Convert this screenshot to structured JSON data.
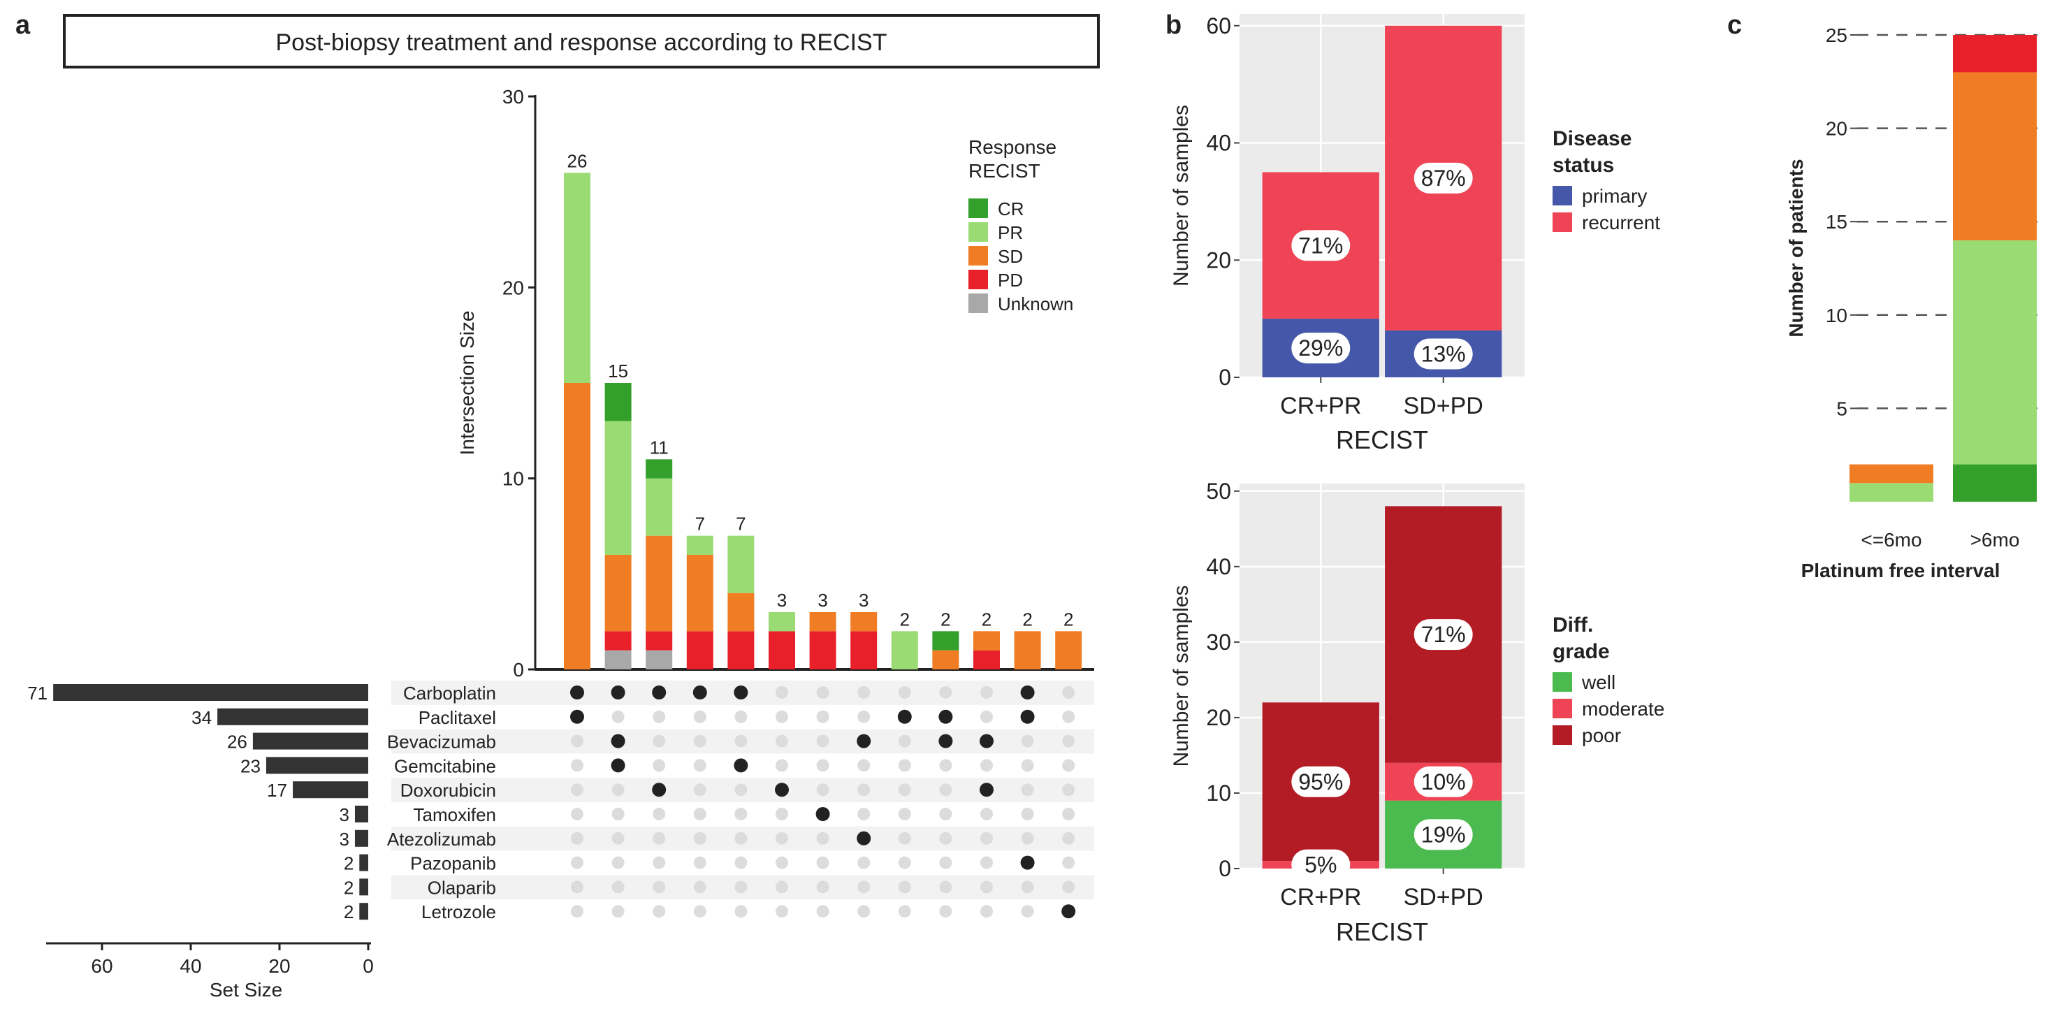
{
  "panel_labels": {
    "a": "a",
    "b": "b",
    "c": "c"
  },
  "colors": {
    "CR": "#33a02c",
    "PR": "#9bdb74",
    "SD": "#f07d23",
    "PD": "#e8202a",
    "Unknown": "#a8a8a8",
    "primary": "#4457a8",
    "recurrent": "#ef4455",
    "well": "#4cbb4f",
    "moderate": "#ef4455",
    "poor": "#b31b25",
    "panel_bg": "#ebebeb",
    "dot_on": "#222222",
    "dot_off": "#dcdcdc",
    "stripe": "#f2f2f2"
  },
  "chart_data": [
    {
      "id": "upset",
      "type": "bar",
      "title": "Post-biopsy treatment and response according to RECIST",
      "ylabel": "Intersection Size",
      "ylim": [
        0,
        30
      ],
      "yticks": [
        0,
        10,
        20,
        30
      ],
      "legend": {
        "title": [
          "Response",
          "RECIST"
        ],
        "position": "top-right",
        "entries": [
          "CR",
          "PR",
          "SD",
          "PD",
          "Unknown"
        ]
      },
      "stack_order": [
        "Unknown",
        "PD",
        "SD",
        "PR",
        "CR"
      ],
      "intersections": [
        {
          "total": 26,
          "label": "26",
          "CR": 0,
          "PR": 11,
          "SD": 15,
          "PD": 0,
          "Unknown": 0,
          "sets": [
            "Carboplatin",
            "Paclitaxel"
          ]
        },
        {
          "total": 15,
          "label": "15",
          "CR": 2,
          "PR": 7,
          "SD": 4,
          "PD": 1,
          "Unknown": 1,
          "sets": [
            "Carboplatin",
            "Bevacizumab",
            "Gemcitabine"
          ]
        },
        {
          "total": 11,
          "label": "11",
          "CR": 1,
          "PR": 3,
          "SD": 5,
          "PD": 1,
          "Unknown": 1,
          "sets": [
            "Carboplatin",
            "Doxorubicin"
          ]
        },
        {
          "total": 7,
          "label": "7",
          "CR": 0,
          "PR": 1,
          "SD": 4,
          "PD": 2,
          "Unknown": 0,
          "sets": [
            "Carboplatin"
          ]
        },
        {
          "total": 7,
          "label": "7",
          "CR": 0,
          "PR": 3,
          "SD": 2,
          "PD": 2,
          "Unknown": 0,
          "sets": [
            "Carboplatin",
            "Gemcitabine"
          ]
        },
        {
          "total": 3,
          "label": "3",
          "CR": 0,
          "PR": 1,
          "SD": 0,
          "PD": 2,
          "Unknown": 0,
          "sets": [
            "Doxorubicin"
          ]
        },
        {
          "total": 3,
          "label": "3",
          "CR": 0,
          "PR": 0,
          "SD": 1,
          "PD": 2,
          "Unknown": 0,
          "sets": [
            "Tamoxifen"
          ]
        },
        {
          "total": 3,
          "label": "3",
          "CR": 0,
          "PR": 0,
          "SD": 1,
          "PD": 2,
          "Unknown": 0,
          "sets": [
            "Bevacizumab",
            "Atezolizumab"
          ]
        },
        {
          "total": 2,
          "label": "2",
          "CR": 0,
          "PR": 2,
          "SD": 0,
          "PD": 0,
          "Unknown": 0,
          "sets": [
            "Paclitaxel"
          ]
        },
        {
          "total": 2,
          "label": "2",
          "CR": 1,
          "PR": 0,
          "SD": 1,
          "PD": 0,
          "Unknown": 0,
          "sets": [
            "Paclitaxel",
            "Bevacizumab"
          ]
        },
        {
          "total": 2,
          "label": "2",
          "CR": 0,
          "PR": 0,
          "SD": 1,
          "PD": 1,
          "Unknown": 0,
          "sets": [
            "Bevacizumab",
            "Doxorubicin"
          ]
        },
        {
          "total": 2,
          "label": "2",
          "CR": 0,
          "PR": 0,
          "SD": 2,
          "PD": 0,
          "Unknown": 0,
          "sets": [
            "Carboplatin",
            "Paclitaxel",
            "Pazopanib"
          ]
        },
        {
          "total": 2,
          "label": "2",
          "CR": 0,
          "PR": 0,
          "SD": 2,
          "PD": 0,
          "Unknown": 0,
          "sets": [
            "Letrozole"
          ]
        }
      ],
      "sets": [
        {
          "name": "Carboplatin",
          "size": 71
        },
        {
          "name": "Paclitaxel",
          "size": 34
        },
        {
          "name": "Bevacizumab",
          "size": 26
        },
        {
          "name": "Gemcitabine",
          "size": 23
        },
        {
          "name": "Doxorubicin",
          "size": 17
        },
        {
          "name": "Tamoxifen",
          "size": 3
        },
        {
          "name": "Atezolizumab",
          "size": 3
        },
        {
          "name": "Pazopanib",
          "size": 2
        },
        {
          "name": "Olaparib",
          "size": 2
        },
        {
          "name": "Letrozole",
          "size": 2
        }
      ],
      "set_size_axis": {
        "xlabel": "Set Size",
        "xlim": [
          0,
          75
        ],
        "ticks": [
          60,
          40,
          20,
          0
        ]
      }
    },
    {
      "id": "disease-status",
      "type": "bar",
      "stacked": true,
      "xlabel": "RECIST",
      "ylabel": "Number of samples",
      "ylim": [
        0,
        62
      ],
      "yticks": [
        0,
        20,
        40,
        60
      ],
      "categories": [
        "CR+PR",
        "SD+PD"
      ],
      "series": [
        {
          "name": "primary",
          "values": [
            10,
            8
          ],
          "labels": [
            "29%",
            "13%"
          ]
        },
        {
          "name": "recurrent",
          "values": [
            25,
            52
          ],
          "labels": [
            "71%",
            "87%"
          ]
        }
      ],
      "legend": {
        "title": [
          "Disease",
          "status"
        ],
        "position": "right",
        "entries": [
          "primary",
          "recurrent"
        ]
      }
    },
    {
      "id": "diff-grade",
      "type": "bar",
      "stacked": true,
      "xlabel": "RECIST",
      "ylabel": "Number of samples",
      "ylim": [
        0,
        51
      ],
      "yticks": [
        0,
        10,
        20,
        30,
        40,
        50
      ],
      "categories": [
        "CR+PR",
        "SD+PD"
      ],
      "series": [
        {
          "name": "well",
          "values": [
            0,
            9
          ],
          "labels": [
            "",
            "19%"
          ]
        },
        {
          "name": "moderate",
          "values": [
            1,
            5
          ],
          "labels": [
            "5%",
            "10%"
          ]
        },
        {
          "name": "poor",
          "values": [
            21,
            34
          ],
          "labels": [
            "95%",
            "71%"
          ]
        }
      ],
      "legend": {
        "title": [
          "Diff.",
          "grade"
        ],
        "position": "right",
        "entries": [
          "well",
          "moderate",
          "poor"
        ]
      }
    },
    {
      "id": "platinum-free",
      "type": "bar",
      "stacked": true,
      "xlabel": "Platinum free interval",
      "ylabel": "Number of patients",
      "ylim": [
        0,
        25
      ],
      "yticks": [
        5,
        10,
        15,
        20,
        25
      ],
      "categories": [
        "<=6mo",
        ">6mo"
      ],
      "series": [
        {
          "name": "CR",
          "values": [
            0,
            2
          ]
        },
        {
          "name": "PR",
          "values": [
            1,
            12
          ]
        },
        {
          "name": "SD",
          "values": [
            1,
            9
          ]
        },
        {
          "name": "PD",
          "values": [
            0,
            2
          ]
        }
      ]
    }
  ]
}
